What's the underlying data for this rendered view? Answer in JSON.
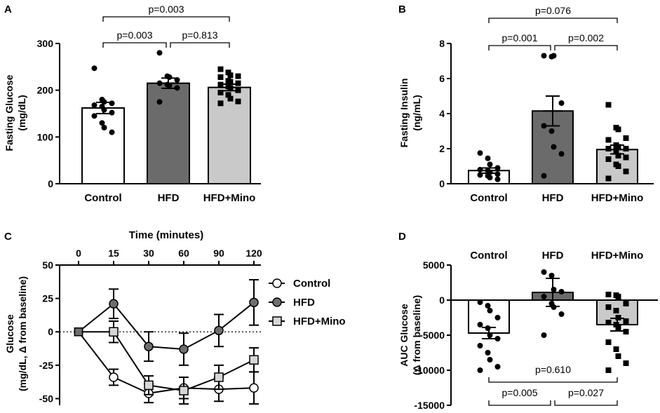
{
  "chart_data": [
    {
      "id": "A",
      "type": "bar",
      "panel_label": "A",
      "ylabel_lines": [
        "Fasting Glucose",
        "(mg/dL)"
      ],
      "categories": [
        "Control",
        "HFD",
        "HFD+Mino"
      ],
      "means": [
        162,
        215,
        206
      ],
      "errors": [
        12,
        11,
        7
      ],
      "bar_colors": [
        "#ffffff",
        "#6b6b6b",
        "#c9c9c9"
      ],
      "markers": [
        "circle",
        "circle",
        "square"
      ],
      "points": [
        [
          247,
          180,
          175,
          172,
          168,
          165,
          158,
          152,
          145,
          130,
          120,
          110
        ],
        [
          280,
          230,
          228,
          222,
          215,
          212,
          210,
          205,
          175
        ],
        [
          245,
          238,
          232,
          230,
          228,
          220,
          218,
          215,
          212,
          208,
          205,
          200,
          195,
          190,
          182,
          176,
          172
        ]
      ],
      "ylim": [
        0,
        300
      ],
      "yticks": [
        0,
        100,
        200,
        300
      ],
      "comparisons": [
        {
          "from": 0,
          "to": 1,
          "label": "p=0.003",
          "level": 1
        },
        {
          "from": 1,
          "to": 2,
          "label": "p=0.813",
          "level": 1
        },
        {
          "from": 0,
          "to": 2,
          "label": "p=0.003",
          "level": 2
        }
      ]
    },
    {
      "id": "B",
      "type": "bar",
      "panel_label": "B",
      "ylabel_lines": [
        "Fasting Insulin",
        "(ng/mL)"
      ],
      "categories": [
        "Control",
        "HFD",
        "HFD+Mino"
      ],
      "means": [
        0.75,
        4.15,
        1.95
      ],
      "errors": [
        0.15,
        0.85,
        0.25
      ],
      "bar_colors": [
        "#ffffff",
        "#6b6b6b",
        "#c9c9c9"
      ],
      "markers": [
        "circle",
        "circle",
        "square"
      ],
      "points": [
        [
          1.75,
          1.45,
          1.1,
          0.9,
          0.8,
          0.75,
          0.65,
          0.55,
          0.5,
          0.45,
          0.35,
          0.25
        ],
        [
          7.3,
          7.25,
          7.3,
          4.6,
          3.3,
          3.0,
          2.1,
          1.7,
          0.45
        ],
        [
          4.5,
          3.2,
          3.1,
          2.6,
          2.5,
          2.2,
          2.1,
          2.0,
          2.0,
          1.9,
          1.6,
          1.5,
          1.4,
          1.1,
          1.0,
          0.7,
          0.3
        ]
      ],
      "ylim": [
        0,
        8
      ],
      "yticks": [
        0,
        2,
        4,
        6,
        8
      ],
      "comparisons": [
        {
          "from": 0,
          "to": 1,
          "label": "p=0.001",
          "level": 1
        },
        {
          "from": 1,
          "to": 2,
          "label": "p=0.002",
          "level": 1
        },
        {
          "from": 0,
          "to": 2,
          "label": "p=0.076",
          "level": 2
        }
      ]
    },
    {
      "id": "C",
      "type": "line",
      "panel_label": "C",
      "title": "Time (minutes)",
      "ylabel_lines": [
        "Glucose",
        "(mg/dL, Δ from baseline)"
      ],
      "x": [
        0,
        15,
        30,
        60,
        90,
        120
      ],
      "ylim": [
        -55,
        50
      ],
      "yticks": [
        -50,
        -25,
        0,
        25,
        50
      ],
      "series": [
        {
          "name": "Control",
          "marker": "circle",
          "fill": "#ffffff",
          "values": [
            0,
            -34,
            -46,
            -42,
            -43,
            -42
          ],
          "errors": [
            0,
            6,
            7,
            8,
            9,
            12
          ]
        },
        {
          "name": "HFD",
          "marker": "circle",
          "fill": "#6e6e6e",
          "values": [
            0,
            21,
            -11,
            -13,
            1,
            22
          ],
          "errors": [
            0,
            11,
            11,
            12,
            12,
            17
          ]
        },
        {
          "name": "HFD+Mino",
          "marker": "square",
          "fill": "#d6d6d6",
          "values": [
            0,
            0,
            -40,
            -44,
            -34,
            -21
          ],
          "errors": [
            0,
            8,
            7,
            10,
            9,
            9
          ]
        }
      ]
    },
    {
      "id": "D",
      "type": "bar",
      "panel_label": "D",
      "ylabel_lines": [
        "AUC Glucose",
        "(Δ from baseline)"
      ],
      "categories": [
        "Control",
        "HFD",
        "HFD+Mino"
      ],
      "means": [
        -4700,
        1100,
        -3500
      ],
      "errors": [
        800,
        2000,
        900
      ],
      "bar_colors": [
        "#ffffff",
        "#6b6b6b",
        "#c9c9c9"
      ],
      "markers": [
        "circle",
        "circle",
        "square"
      ],
      "points": [
        [
          -300,
          -800,
          -1500,
          -2500,
          -3500,
          -4000,
          -5000,
          -5500,
          -6500,
          -7500,
          -8500,
          -9500,
          -10000
        ],
        [
          4000,
          3500,
          1500,
          1200,
          500,
          -500,
          -1000,
          -2000,
          -5000
        ],
        [
          800,
          700,
          500,
          -500,
          -1000,
          -1500,
          -2500,
          -3000,
          -3200,
          -3500,
          -4000,
          -4500,
          -6000,
          -7000,
          -8000,
          -9000,
          -10000
        ]
      ],
      "ylim": [
        -15000,
        5000
      ],
      "yticks": [
        -15000,
        -10000,
        -5000,
        0,
        5000
      ],
      "comparisons": [
        {
          "from": 0,
          "to": 1,
          "label": "p=0.005",
          "level": 1
        },
        {
          "from": 1,
          "to": 2,
          "label": "p=0.027",
          "level": 1
        },
        {
          "from": 0,
          "to": 2,
          "label": "p=0.610",
          "level": 2
        }
      ]
    }
  ]
}
